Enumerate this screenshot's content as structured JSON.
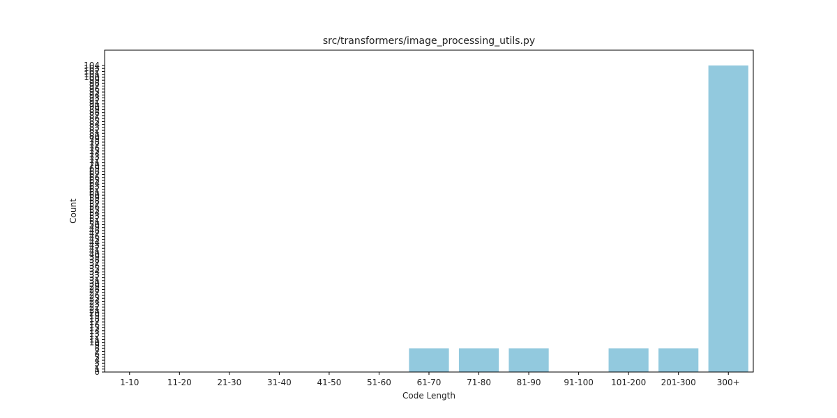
{
  "chart_data": {
    "type": "bar",
    "title": "src/transformers/image_processing_utils.py",
    "xlabel": "Code Length",
    "ylabel": "Count",
    "categories": [
      "1-10",
      "11-20",
      "21-30",
      "31-40",
      "41-50",
      "51-60",
      "61-70",
      "71-80",
      "81-90",
      "91-100",
      "101-200",
      "201-300",
      "300+"
    ],
    "values": [
      0,
      0,
      0,
      0,
      0,
      0,
      8,
      8,
      8,
      0,
      8,
      8,
      104
    ],
    "yticks": [
      0,
      1,
      2,
      3,
      4,
      5,
      6,
      7,
      8,
      9,
      10,
      11,
      12,
      13,
      14,
      15,
      16,
      17,
      18,
      19,
      20,
      21,
      22,
      23,
      24,
      25,
      26,
      27,
      28,
      29,
      30,
      31,
      32,
      33,
      34,
      35,
      36,
      37,
      38,
      39,
      40,
      41,
      42,
      43,
      44,
      45,
      46,
      47,
      48,
      49,
      50,
      51,
      52,
      53,
      54,
      55,
      56,
      57,
      58,
      59,
      60,
      61,
      62,
      63,
      64,
      65,
      66,
      67,
      68,
      69,
      70,
      71,
      72,
      73,
      74,
      75,
      76,
      77,
      78,
      79,
      80,
      81,
      82,
      83,
      84,
      85,
      86,
      87,
      88,
      89,
      90,
      91,
      92,
      93,
      94,
      95,
      96,
      97,
      98,
      99,
      100,
      101,
      102,
      103,
      104
    ],
    "ylim": [
      0,
      109.2
    ],
    "grid": false,
    "bar_color": "#92c9de"
  }
}
